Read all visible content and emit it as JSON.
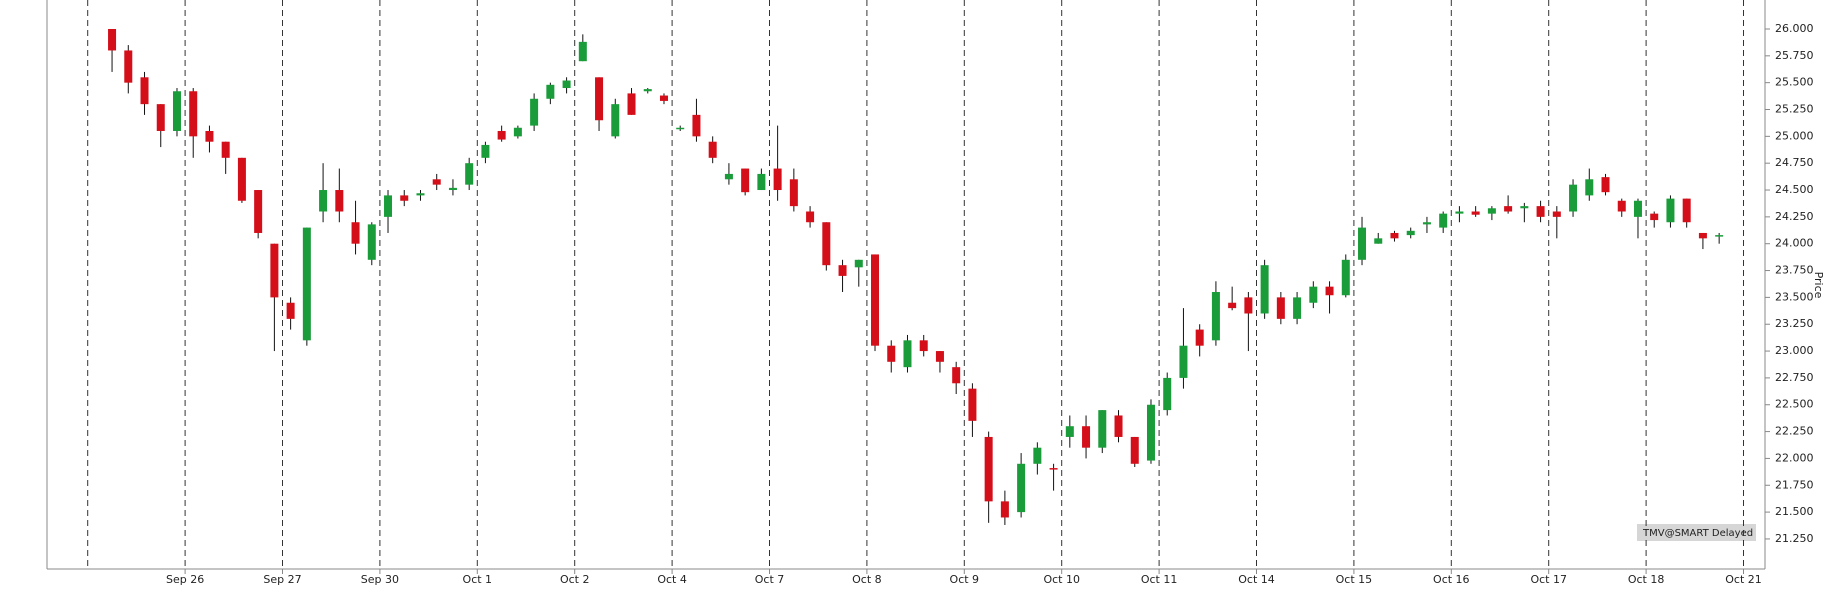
{
  "chart_data": {
    "type": "candlestick",
    "y_label": "Price",
    "annotation": "TMV@SMART Delayed",
    "up_color": "#1a9c3a",
    "down_color": "#d40f1a",
    "ylim": [
      20.97,
      26.27
    ],
    "yticks": [
      {
        "value": 26.0,
        "label": "26.000"
      },
      {
        "value": 25.75,
        "label": "25.750"
      },
      {
        "value": 25.5,
        "label": "25.500"
      },
      {
        "value": 25.25,
        "label": "25.250"
      },
      {
        "value": 25.0,
        "label": "25.000"
      },
      {
        "value": 24.75,
        "label": "24.750"
      },
      {
        "value": 24.5,
        "label": "24.500"
      },
      {
        "value": 24.25,
        "label": "24.250"
      },
      {
        "value": 24.0,
        "label": "24.000"
      },
      {
        "value": 23.75,
        "label": "23.750"
      },
      {
        "value": 23.5,
        "label": "23.500"
      },
      {
        "value": 23.25,
        "label": "23.250"
      },
      {
        "value": 23.0,
        "label": "23.000"
      },
      {
        "value": 22.75,
        "label": "22.750"
      },
      {
        "value": 22.5,
        "label": "22.500"
      },
      {
        "value": 22.25,
        "label": "22.250"
      },
      {
        "value": 22.0,
        "label": "22.000"
      },
      {
        "value": 21.75,
        "label": "21.750"
      },
      {
        "value": 21.5,
        "label": "21.500"
      },
      {
        "value": 21.25,
        "label": "21.250"
      }
    ],
    "categories": [
      null,
      null,
      null,
      null,
      null,
      null,
      "Sep 26",
      null,
      null,
      null,
      null,
      null,
      "Sep 27",
      null,
      null,
      null,
      null,
      null,
      "Sep 30",
      null,
      null,
      null,
      null,
      null,
      "Oct 1",
      null,
      null,
      null,
      null,
      null,
      "Oct 2",
      null,
      null,
      null,
      null,
      null,
      "Oct 4",
      null,
      null,
      null,
      null,
      null,
      "Oct 7",
      null,
      null,
      null,
      null,
      null,
      "Oct 8",
      null,
      null,
      null,
      null,
      null,
      "Oct 9",
      null,
      null,
      null,
      null,
      null,
      "Oct 10",
      null,
      null,
      null,
      null,
      null,
      "Oct 11",
      null,
      null,
      null,
      null,
      null,
      "Oct 14",
      null,
      null,
      null,
      null,
      null,
      "Oct 15",
      null,
      null,
      null,
      null,
      null,
      "Oct 16",
      null,
      null,
      null,
      null,
      null,
      "Oct 17",
      null,
      null,
      null,
      null,
      null,
      "Oct 18",
      null,
      null,
      null,
      null,
      null,
      "Oct 21"
    ],
    "open": [
      null,
      26.0,
      25.8,
      25.55,
      25.3,
      25.05,
      25.42,
      25.05,
      24.95,
      24.8,
      24.5,
      24.0,
      23.45,
      23.1,
      24.3,
      24.5,
      24.2,
      23.85,
      24.25,
      24.45,
      24.45,
      24.6,
      24.5,
      24.55,
      24.8,
      25.05,
      25.0,
      25.1,
      25.35,
      25.45,
      25.7,
      25.55,
      25.0,
      25.4,
      25.42,
      25.38,
      25.07,
      25.2,
      24.95,
      24.6,
      24.7,
      24.5,
      24.7,
      24.6,
      24.3,
      24.2,
      23.8,
      23.78,
      23.9,
      23.05,
      22.85,
      23.1,
      23.0,
      22.85,
      22.65,
      22.2,
      21.6,
      21.5,
      21.95,
      21.91,
      22.2,
      22.3,
      22.1,
      22.4,
      22.2,
      21.98,
      22.45,
      22.75,
      23.2,
      23.1,
      23.45,
      23.5,
      23.35,
      23.5,
      23.3,
      23.45,
      23.6,
      23.52,
      23.85,
      24.0,
      24.1,
      24.08,
      24.18,
      24.15,
      24.28,
      24.3,
      24.28,
      24.35,
      24.33,
      24.35,
      24.3,
      24.3,
      24.45,
      24.62,
      24.4,
      24.25,
      24.28,
      24.2,
      24.42,
      24.1,
      24.07,
      null,
      null
    ],
    "high": [
      null,
      26.0,
      25.85,
      25.6,
      25.3,
      25.45,
      25.45,
      25.1,
      24.95,
      24.8,
      24.5,
      24.0,
      23.5,
      24.15,
      24.75,
      24.7,
      24.4,
      24.2,
      24.5,
      24.5,
      24.5,
      24.65,
      24.6,
      24.8,
      24.95,
      25.1,
      25.1,
      25.4,
      25.5,
      25.55,
      25.95,
      25.55,
      25.35,
      25.45,
      25.45,
      25.4,
      25.1,
      25.35,
      25.0,
      24.75,
      24.7,
      24.7,
      25.1,
      24.7,
      24.35,
      24.2,
      23.85,
      23.85,
      23.9,
      23.1,
      23.15,
      23.15,
      23.0,
      22.9,
      22.7,
      22.25,
      21.7,
      22.05,
      22.15,
      21.95,
      22.4,
      22.4,
      22.45,
      22.45,
      22.2,
      22.55,
      22.8,
      23.4,
      23.25,
      23.65,
      23.6,
      23.55,
      23.85,
      23.55,
      23.55,
      23.65,
      23.65,
      23.9,
      24.25,
      24.1,
      24.12,
      24.15,
      24.25,
      24.3,
      24.35,
      24.35,
      24.35,
      24.45,
      24.38,
      24.4,
      24.35,
      24.6,
      24.7,
      24.65,
      24.42,
      24.42,
      24.3,
      24.45,
      24.42,
      24.1,
      24.1,
      null,
      null
    ],
    "low": [
      null,
      25.6,
      25.4,
      25.2,
      24.9,
      25.0,
      24.8,
      24.85,
      24.65,
      24.38,
      24.05,
      23.0,
      23.2,
      23.05,
      24.2,
      24.2,
      23.9,
      23.8,
      24.1,
      24.35,
      24.4,
      24.5,
      24.45,
      24.5,
      24.75,
      24.95,
      24.98,
      25.05,
      25.3,
      25.4,
      25.7,
      25.05,
      24.98,
      25.2,
      25.4,
      25.3,
      25.05,
      24.95,
      24.75,
      24.55,
      24.45,
      24.5,
      24.4,
      24.3,
      24.15,
      23.75,
      23.55,
      23.6,
      23.0,
      22.8,
      22.8,
      22.95,
      22.8,
      22.6,
      22.2,
      21.4,
      21.38,
      21.45,
      21.85,
      21.7,
      22.1,
      22.0,
      22.05,
      22.15,
      21.92,
      21.95,
      22.4,
      22.65,
      22.95,
      23.05,
      23.38,
      23.0,
      23.3,
      23.25,
      23.25,
      23.4,
      23.35,
      23.5,
      23.8,
      24.0,
      24.02,
      24.05,
      24.1,
      24.1,
      24.2,
      24.25,
      24.22,
      24.28,
      24.2,
      24.2,
      24.05,
      24.25,
      24.4,
      24.45,
      24.25,
      24.05,
      24.15,
      24.15,
      24.15,
      23.95,
      24.0,
      null,
      null
    ],
    "close": [
      null,
      25.8,
      25.5,
      25.3,
      25.05,
      25.42,
      25.0,
      24.95,
      24.8,
      24.4,
      24.1,
      23.5,
      23.3,
      24.15,
      24.5,
      24.3,
      24.0,
      24.18,
      24.45,
      24.4,
      24.47,
      24.55,
      24.52,
      24.75,
      24.92,
      24.97,
      25.08,
      25.35,
      25.48,
      25.52,
      25.88,
      25.15,
      25.3,
      25.2,
      25.44,
      25.33,
      25.08,
      25.0,
      24.8,
      24.65,
      24.48,
      24.65,
      24.5,
      24.35,
      24.2,
      23.8,
      23.7,
      23.85,
      23.05,
      22.9,
      23.1,
      23.0,
      22.9,
      22.7,
      22.35,
      21.6,
      21.45,
      21.95,
      22.1,
      21.9,
      22.3,
      22.1,
      22.45,
      22.2,
      21.95,
      22.5,
      22.75,
      23.05,
      23.05,
      23.55,
      23.4,
      23.35,
      23.8,
      23.3,
      23.5,
      23.6,
      23.52,
      23.85,
      24.15,
      24.05,
      24.05,
      24.12,
      24.2,
      24.28,
      24.3,
      24.27,
      24.33,
      24.3,
      24.35,
      24.25,
      24.25,
      24.55,
      24.6,
      24.48,
      24.3,
      24.4,
      24.22,
      24.42,
      24.2,
      24.05,
      24.08,
      null,
      null
    ]
  }
}
